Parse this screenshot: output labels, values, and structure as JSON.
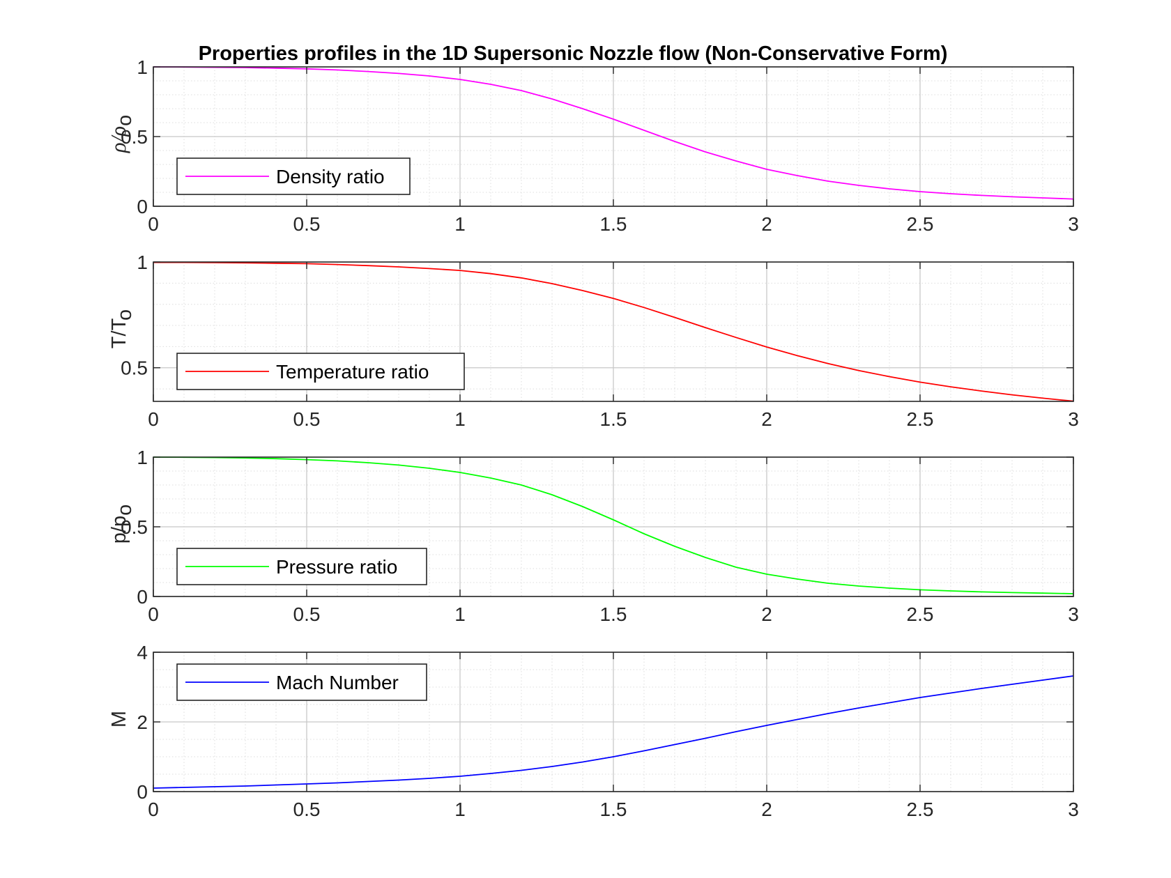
{
  "figure": {
    "title": "Properties profiles in the 1D Supersonic Nozzle flow (Non-Conservative Form)"
  },
  "chart_data": [
    {
      "type": "line",
      "x": [
        0,
        0.1,
        0.2,
        0.3,
        0.4,
        0.5,
        0.6,
        0.7,
        0.8,
        0.9,
        1.0,
        1.1,
        1.2,
        1.3,
        1.4,
        1.5,
        1.6,
        1.7,
        1.8,
        1.9,
        2.0,
        2.1,
        2.2,
        2.3,
        2.4,
        2.5,
        2.6,
        2.7,
        2.8,
        2.9,
        3.0
      ],
      "series": [
        {
          "name": "Density ratio",
          "color": "#ff00ff",
          "values": [
            1.0,
            0.999,
            0.997,
            0.995,
            0.991,
            0.986,
            0.978,
            0.967,
            0.953,
            0.935,
            0.91,
            0.875,
            0.83,
            0.77,
            0.7,
            0.625,
            0.545,
            0.465,
            0.39,
            0.325,
            0.265,
            0.22,
            0.18,
            0.15,
            0.125,
            0.105,
            0.09,
            0.078,
            0.068,
            0.06,
            0.052
          ]
        }
      ],
      "ylabel": "ρ/ρ",
      "ylabel_sub": "o",
      "xlim": [
        0,
        3
      ],
      "ylim": [
        0,
        1
      ],
      "xticks": [
        "0",
        "0.5",
        "1",
        "1.5",
        "2",
        "2.5",
        "3"
      ],
      "yticks": [
        {
          "v": 0,
          "label": "0"
        },
        {
          "v": 0.5,
          "label": "0.5"
        },
        {
          "v": 1,
          "label": "1"
        }
      ],
      "grid": true,
      "minor_grid": true,
      "legend": "bottom-left"
    },
    {
      "type": "line",
      "x": [
        0,
        0.1,
        0.2,
        0.3,
        0.4,
        0.5,
        0.6,
        0.7,
        0.8,
        0.9,
        1.0,
        1.1,
        1.2,
        1.3,
        1.4,
        1.5,
        1.6,
        1.7,
        1.8,
        1.9,
        2.0,
        2.1,
        2.2,
        2.3,
        2.4,
        2.5,
        2.6,
        2.7,
        2.8,
        2.9,
        3.0
      ],
      "series": [
        {
          "name": "Temperature ratio",
          "color": "#ff0000",
          "values": [
            0.998,
            0.998,
            0.997,
            0.996,
            0.994,
            0.992,
            0.988,
            0.983,
            0.977,
            0.969,
            0.96,
            0.945,
            0.925,
            0.898,
            0.865,
            0.828,
            0.785,
            0.738,
            0.69,
            0.643,
            0.598,
            0.557,
            0.52,
            0.487,
            0.458,
            0.432,
            0.41,
            0.39,
            0.372,
            0.356,
            0.342
          ]
        }
      ],
      "ylabel": "T/T",
      "ylabel_sub": "o",
      "xlim": [
        0,
        3
      ],
      "ylim": [
        0.341,
        1
      ],
      "xticks": [
        "0",
        "0.5",
        "1",
        "1.5",
        "2",
        "2.5",
        "3"
      ],
      "yticks": [
        {
          "v": 0.5,
          "label": "0.5"
        },
        {
          "v": 1,
          "label": "1"
        }
      ],
      "grid": true,
      "minor_grid": true,
      "legend": "bottom-left"
    },
    {
      "type": "line",
      "x": [
        0,
        0.1,
        0.2,
        0.3,
        0.4,
        0.5,
        0.6,
        0.7,
        0.8,
        0.9,
        1.0,
        1.1,
        1.2,
        1.3,
        1.4,
        1.5,
        1.6,
        1.7,
        1.8,
        1.9,
        2.0,
        2.1,
        2.2,
        2.3,
        2.4,
        2.5,
        2.6,
        2.7,
        2.8,
        2.9,
        3.0
      ],
      "series": [
        {
          "name": "Pressure ratio",
          "color": "#00ff00",
          "values": [
            1.0,
            0.999,
            0.997,
            0.994,
            0.989,
            0.982,
            0.973,
            0.96,
            0.943,
            0.92,
            0.89,
            0.85,
            0.8,
            0.73,
            0.645,
            0.55,
            0.45,
            0.36,
            0.28,
            0.21,
            0.16,
            0.125,
            0.095,
            0.075,
            0.06,
            0.048,
            0.04,
            0.033,
            0.028,
            0.024,
            0.02
          ]
        }
      ],
      "ylabel": "p/p",
      "ylabel_sub": "o",
      "xlim": [
        0,
        3
      ],
      "ylim": [
        0,
        1
      ],
      "xticks": [
        "0",
        "0.5",
        "1",
        "1.5",
        "2",
        "2.5",
        "3"
      ],
      "yticks": [
        {
          "v": 0,
          "label": "0"
        },
        {
          "v": 0.5,
          "label": "0.5"
        },
        {
          "v": 1,
          "label": "1"
        }
      ],
      "grid": true,
      "minor_grid": true,
      "legend": "bottom-left"
    },
    {
      "type": "line",
      "x": [
        0,
        0.1,
        0.2,
        0.3,
        0.4,
        0.5,
        0.6,
        0.7,
        0.8,
        0.9,
        1.0,
        1.1,
        1.2,
        1.3,
        1.4,
        1.5,
        1.6,
        1.7,
        1.8,
        1.9,
        2.0,
        2.1,
        2.2,
        2.3,
        2.4,
        2.5,
        2.6,
        2.7,
        2.8,
        2.9,
        3.0
      ],
      "series": [
        {
          "name": "Mach Number",
          "color": "#0000ff",
          "values": [
            0.1,
            0.12,
            0.14,
            0.16,
            0.19,
            0.22,
            0.25,
            0.29,
            0.33,
            0.38,
            0.44,
            0.52,
            0.61,
            0.72,
            0.85,
            1.0,
            1.17,
            1.35,
            1.53,
            1.72,
            1.9,
            2.07,
            2.24,
            2.4,
            2.55,
            2.7,
            2.83,
            2.96,
            3.08,
            3.2,
            3.32
          ]
        }
      ],
      "ylabel": "M",
      "ylabel_sub": "",
      "xlim": [
        0,
        3
      ],
      "ylim": [
        0,
        4
      ],
      "xticks": [
        "0",
        "0.5",
        "1",
        "1.5",
        "2",
        "2.5",
        "3"
      ],
      "yticks": [
        {
          "v": 0,
          "label": "0"
        },
        {
          "v": 2,
          "label": "2"
        },
        {
          "v": 4,
          "label": "4"
        }
      ],
      "grid": true,
      "minor_grid": true,
      "legend": "top-left"
    }
  ]
}
